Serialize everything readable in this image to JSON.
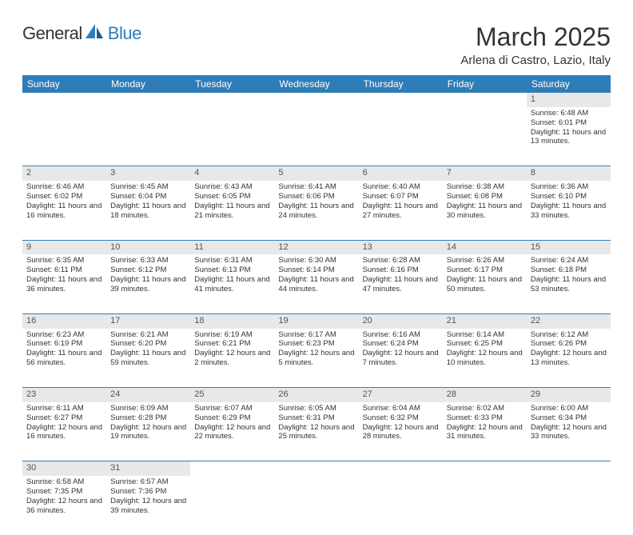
{
  "logo": {
    "text1": "General",
    "text2": "Blue"
  },
  "title": "March 2025",
  "location": "Arlena di Castro, Lazio, Italy",
  "header_bg": "#2f7db8",
  "daynum_bg": "#e8e8e8",
  "weekdays": [
    "Sunday",
    "Monday",
    "Tuesday",
    "Wednesday",
    "Thursday",
    "Friday",
    "Saturday"
  ],
  "weeks": [
    [
      null,
      null,
      null,
      null,
      null,
      null,
      {
        "n": "1",
        "sr": "6:48 AM",
        "ss": "6:01 PM",
        "dl": "11 hours and 13 minutes."
      }
    ],
    [
      {
        "n": "2",
        "sr": "6:46 AM",
        "ss": "6:02 PM",
        "dl": "11 hours and 16 minutes."
      },
      {
        "n": "3",
        "sr": "6:45 AM",
        "ss": "6:04 PM",
        "dl": "11 hours and 18 minutes."
      },
      {
        "n": "4",
        "sr": "6:43 AM",
        "ss": "6:05 PM",
        "dl": "11 hours and 21 minutes."
      },
      {
        "n": "5",
        "sr": "6:41 AM",
        "ss": "6:06 PM",
        "dl": "11 hours and 24 minutes."
      },
      {
        "n": "6",
        "sr": "6:40 AM",
        "ss": "6:07 PM",
        "dl": "11 hours and 27 minutes."
      },
      {
        "n": "7",
        "sr": "6:38 AM",
        "ss": "6:08 PM",
        "dl": "11 hours and 30 minutes."
      },
      {
        "n": "8",
        "sr": "6:36 AM",
        "ss": "6:10 PM",
        "dl": "11 hours and 33 minutes."
      }
    ],
    [
      {
        "n": "9",
        "sr": "6:35 AM",
        "ss": "6:11 PM",
        "dl": "11 hours and 36 minutes."
      },
      {
        "n": "10",
        "sr": "6:33 AM",
        "ss": "6:12 PM",
        "dl": "11 hours and 39 minutes."
      },
      {
        "n": "11",
        "sr": "6:31 AM",
        "ss": "6:13 PM",
        "dl": "11 hours and 41 minutes."
      },
      {
        "n": "12",
        "sr": "6:30 AM",
        "ss": "6:14 PM",
        "dl": "11 hours and 44 minutes."
      },
      {
        "n": "13",
        "sr": "6:28 AM",
        "ss": "6:16 PM",
        "dl": "11 hours and 47 minutes."
      },
      {
        "n": "14",
        "sr": "6:26 AM",
        "ss": "6:17 PM",
        "dl": "11 hours and 50 minutes."
      },
      {
        "n": "15",
        "sr": "6:24 AM",
        "ss": "6:18 PM",
        "dl": "11 hours and 53 minutes."
      }
    ],
    [
      {
        "n": "16",
        "sr": "6:23 AM",
        "ss": "6:19 PM",
        "dl": "11 hours and 56 minutes."
      },
      {
        "n": "17",
        "sr": "6:21 AM",
        "ss": "6:20 PM",
        "dl": "11 hours and 59 minutes."
      },
      {
        "n": "18",
        "sr": "6:19 AM",
        "ss": "6:21 PM",
        "dl": "12 hours and 2 minutes."
      },
      {
        "n": "19",
        "sr": "6:17 AM",
        "ss": "6:23 PM",
        "dl": "12 hours and 5 minutes."
      },
      {
        "n": "20",
        "sr": "6:16 AM",
        "ss": "6:24 PM",
        "dl": "12 hours and 7 minutes."
      },
      {
        "n": "21",
        "sr": "6:14 AM",
        "ss": "6:25 PM",
        "dl": "12 hours and 10 minutes."
      },
      {
        "n": "22",
        "sr": "6:12 AM",
        "ss": "6:26 PM",
        "dl": "12 hours and 13 minutes."
      }
    ],
    [
      {
        "n": "23",
        "sr": "6:11 AM",
        "ss": "6:27 PM",
        "dl": "12 hours and 16 minutes."
      },
      {
        "n": "24",
        "sr": "6:09 AM",
        "ss": "6:28 PM",
        "dl": "12 hours and 19 minutes."
      },
      {
        "n": "25",
        "sr": "6:07 AM",
        "ss": "6:29 PM",
        "dl": "12 hours and 22 minutes."
      },
      {
        "n": "26",
        "sr": "6:05 AM",
        "ss": "6:31 PM",
        "dl": "12 hours and 25 minutes."
      },
      {
        "n": "27",
        "sr": "6:04 AM",
        "ss": "6:32 PM",
        "dl": "12 hours and 28 minutes."
      },
      {
        "n": "28",
        "sr": "6:02 AM",
        "ss": "6:33 PM",
        "dl": "12 hours and 31 minutes."
      },
      {
        "n": "29",
        "sr": "6:00 AM",
        "ss": "6:34 PM",
        "dl": "12 hours and 33 minutes."
      }
    ],
    [
      {
        "n": "30",
        "sr": "6:58 AM",
        "ss": "7:35 PM",
        "dl": "12 hours and 36 minutes."
      },
      {
        "n": "31",
        "sr": "6:57 AM",
        "ss": "7:36 PM",
        "dl": "12 hours and 39 minutes."
      },
      null,
      null,
      null,
      null,
      null
    ]
  ],
  "labels": {
    "sunrise": "Sunrise:",
    "sunset": "Sunset:",
    "daylight": "Daylight:"
  }
}
